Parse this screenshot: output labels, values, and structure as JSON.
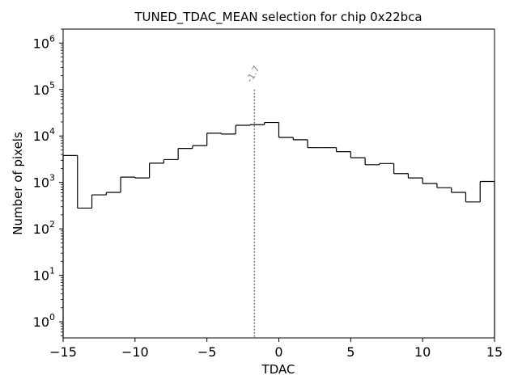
{
  "chart_data": {
    "type": "histogram",
    "title": "TUNED_TDAC_MEAN selection for chip 0x22bca",
    "xlabel": "TDAC",
    "ylabel": "Number of pixels",
    "xlim": [
      -15,
      15
    ],
    "ylim": [
      0.45,
      2000000
    ],
    "yscale": "log",
    "grid": false,
    "bin_edges": [
      -15,
      -14,
      -13,
      -12,
      -11,
      -10,
      -9,
      -8,
      -7,
      -6,
      -5,
      -4,
      -3,
      -2,
      -1,
      0,
      1,
      2,
      3,
      4,
      5,
      6,
      7,
      8,
      9,
      10,
      11,
      12,
      13,
      14,
      15
    ],
    "counts": [
      3800,
      280,
      540,
      610,
      1300,
      1250,
      2600,
      3100,
      5400,
      6200,
      11500,
      11000,
      17000,
      17500,
      19500,
      9300,
      8300,
      5600,
      5600,
      4600,
      3400,
      2400,
      2550,
      1550,
      1250,
      950,
      770,
      610,
      380,
      1050
    ],
    "x_ticks": [
      -15,
      -10,
      -5,
      0,
      5,
      10,
      15
    ],
    "x_tick_labels": [
      "−15",
      "−10",
      "−5",
      "0",
      "5",
      "10",
      "15"
    ],
    "y_ticks": [
      1,
      10,
      100,
      1000,
      10000,
      100000,
      1000000
    ],
    "y_tick_exponents": [
      "0",
      "1",
      "2",
      "3",
      "4",
      "5",
      "6"
    ],
    "y_tick_base": "10",
    "annotation": {
      "label": "-1.7",
      "x": -1.7,
      "y_top": 100000
    },
    "colors": {
      "histogram": "#000000",
      "annotation": "#808080"
    }
  }
}
